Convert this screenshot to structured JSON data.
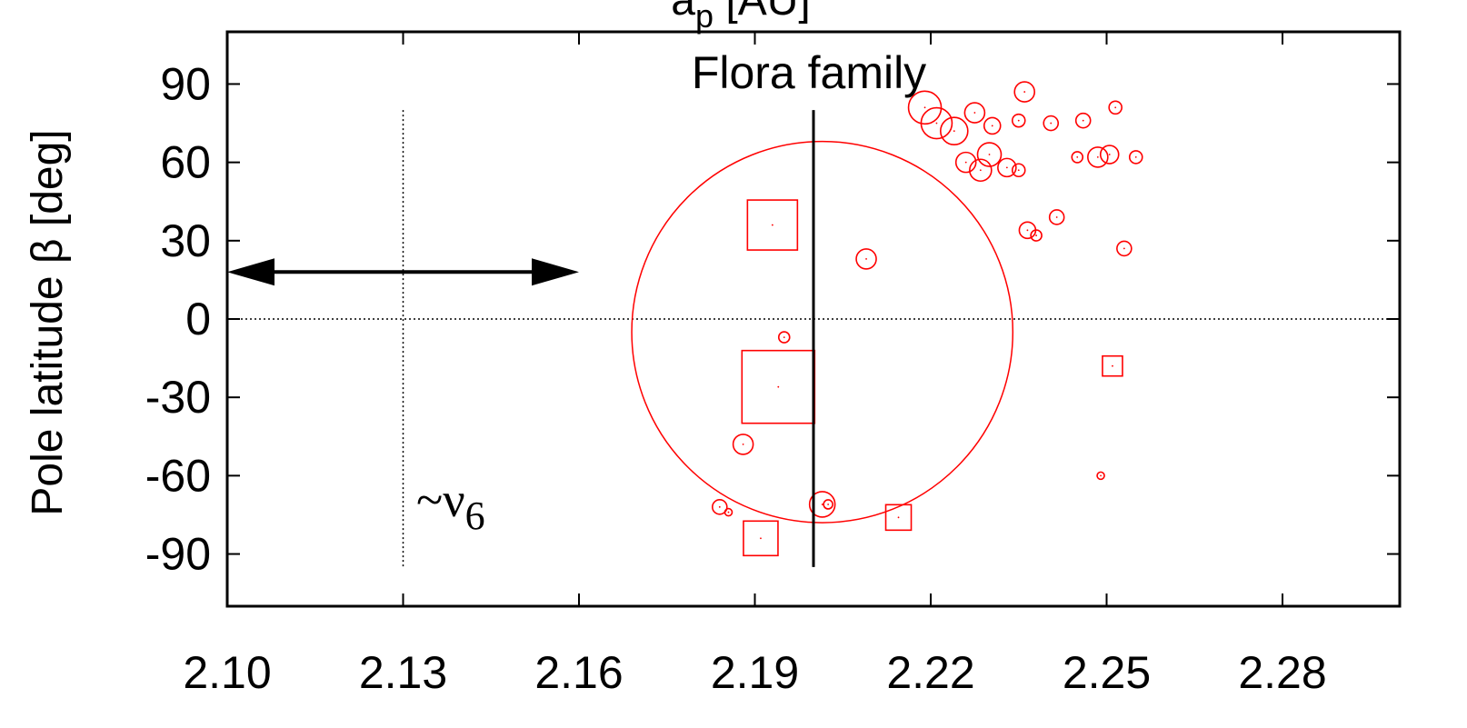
{
  "chart_data": {
    "type": "scatter",
    "title": "a_p [AU]",
    "title_main": "a",
    "title_sub": "p",
    "title_unit": " [AU]",
    "ylabel": "Pole latitude β [deg]",
    "xlim": [
      2.1,
      2.3
    ],
    "ylim": [
      -110,
      110
    ],
    "x_ticks": [
      "2.10",
      "2.13",
      "2.16",
      "2.19",
      "2.22",
      "2.25",
      "2.28"
    ],
    "x_tick_values": [
      2.1,
      2.13,
      2.16,
      2.19,
      2.22,
      2.25,
      2.28
    ],
    "y_ticks": [
      "90",
      "60",
      "30",
      "0",
      "-30",
      "-60",
      "-90"
    ],
    "y_tick_values": [
      90,
      60,
      30,
      0,
      -30,
      -60,
      -90
    ],
    "annotations": {
      "family": "Flora family",
      "resonance_prefix": "~ν",
      "resonance_sub": "6"
    },
    "reference_lines": {
      "zero_line_y": 0,
      "nu6_x": 2.13,
      "nu6_yrange": [
        -95,
        80
      ],
      "center_x": 2.2,
      "center_yrange": [
        -95,
        80
      ]
    },
    "arrow": {
      "x_from": 2.1,
      "x_to": 2.16,
      "y": 18
    },
    "color": "#ff0000",
    "big_circle": {
      "x": 2.2015,
      "y": -5,
      "rx": 0.0325,
      "ry": 73
    },
    "circles": [
      {
        "x": 2.219,
        "y": 81,
        "s": 36
      },
      {
        "x": 2.221,
        "y": 75,
        "s": 34
      },
      {
        "x": 2.224,
        "y": 72,
        "s": 30
      },
      {
        "x": 2.2275,
        "y": 79,
        "s": 22
      },
      {
        "x": 2.2305,
        "y": 74,
        "s": 18
      },
      {
        "x": 2.236,
        "y": 87,
        "s": 22
      },
      {
        "x": 2.235,
        "y": 76,
        "s": 14
      },
      {
        "x": 2.2405,
        "y": 75,
        "s": 16
      },
      {
        "x": 2.246,
        "y": 76,
        "s": 16
      },
      {
        "x": 2.2515,
        "y": 81,
        "s": 14
      },
      {
        "x": 2.226,
        "y": 60,
        "s": 22
      },
      {
        "x": 2.2285,
        "y": 57,
        "s": 24
      },
      {
        "x": 2.23,
        "y": 63,
        "s": 26
      },
      {
        "x": 2.233,
        "y": 58,
        "s": 20
      },
      {
        "x": 2.235,
        "y": 57,
        "s": 14
      },
      {
        "x": 2.245,
        "y": 62,
        "s": 12
      },
      {
        "x": 2.2485,
        "y": 62,
        "s": 22
      },
      {
        "x": 2.2505,
        "y": 63,
        "s": 20
      },
      {
        "x": 2.255,
        "y": 62,
        "s": 14
      },
      {
        "x": 2.2365,
        "y": 34,
        "s": 18
      },
      {
        "x": 2.238,
        "y": 32,
        "s": 12
      },
      {
        "x": 2.2415,
        "y": 39,
        "s": 16
      },
      {
        "x": 2.253,
        "y": 27,
        "s": 16
      },
      {
        "x": 2.209,
        "y": 23,
        "s": 22
      },
      {
        "x": 2.195,
        "y": -7,
        "s": 12
      },
      {
        "x": 2.188,
        "y": -48,
        "s": 22
      },
      {
        "x": 2.184,
        "y": -72,
        "s": 16
      },
      {
        "x": 2.1855,
        "y": -74,
        "s": 8
      },
      {
        "x": 2.2015,
        "y": -71,
        "s": 28
      },
      {
        "x": 2.2025,
        "y": -71,
        "s": 10
      },
      {
        "x": 2.249,
        "y": -60,
        "s": 8
      }
    ],
    "squares": [
      {
        "x": 2.193,
        "y": 36,
        "s": 55
      },
      {
        "x": 2.194,
        "y": -26,
        "s": 80
      },
      {
        "x": 2.191,
        "y": -84,
        "s": 38
      },
      {
        "x": 2.2145,
        "y": -76,
        "s": 28
      },
      {
        "x": 2.251,
        "y": -18,
        "s": 22
      }
    ]
  }
}
